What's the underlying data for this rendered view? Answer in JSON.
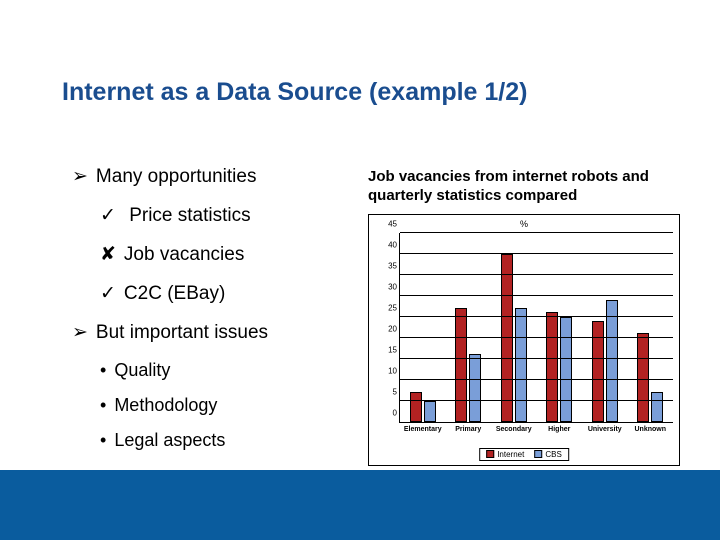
{
  "title": "Internet as a Data Source (example 1/2)",
  "bullets": {
    "opportunities": "Many opportunities",
    "price": "Price statistics",
    "vacancies": "Job vacancies",
    "c2c": "C2C (EBay)",
    "issues": "But important issues",
    "quality": "Quality",
    "methodology": "Methodology",
    "legal": "Legal aspects"
  },
  "markers": {
    "arrow": "➢",
    "check": "✓",
    "cross": "✘",
    "dot": "•"
  },
  "chart": {
    "title": "Job vacancies from internet robots and quarterly statistics compared",
    "type": "bar",
    "y_axis_label": "%",
    "ylim": [
      0,
      45
    ],
    "ytick_step": 5,
    "yticks": [
      0,
      5,
      10,
      15,
      20,
      25,
      30,
      35,
      40,
      45
    ],
    "categories": [
      "Elementary",
      "Primary",
      "Secondary",
      "Higher",
      "University",
      "Unknown"
    ],
    "series": [
      {
        "name": "Internet",
        "color": "#b22222",
        "values": [
          7,
          27,
          40,
          26,
          24,
          21
        ]
      },
      {
        "name": "CBS",
        "color": "#7a9ed8",
        "values": [
          5,
          16,
          27,
          25,
          29,
          7
        ]
      }
    ],
    "background_color": "#ffffff",
    "grid_color": "#000000",
    "bar_border": "#000000",
    "label_fontsize": 7,
    "tick_fontsize": 8,
    "title_fontsize": 15
  },
  "colors": {
    "title": "#1a4d8f",
    "footer": "#0a5c9e"
  }
}
